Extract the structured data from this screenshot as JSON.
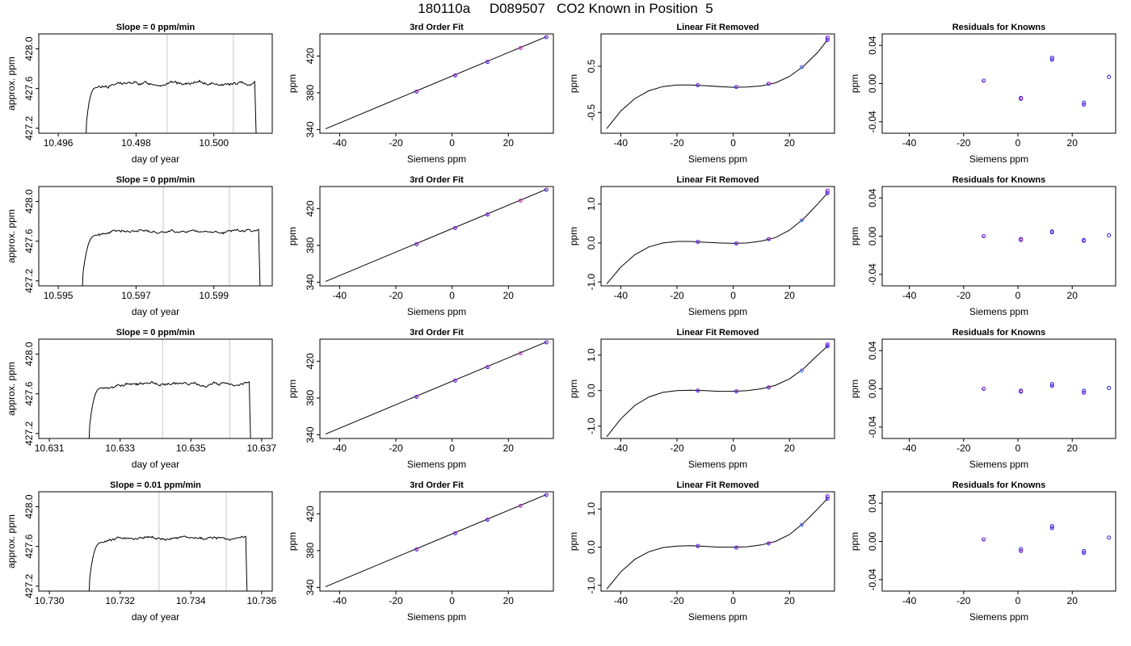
{
  "figure": {
    "title": "180110a     D089507   CO2 Known in Position  5"
  },
  "colors": {
    "axis": "#000000",
    "trace": "#000000",
    "marker_guides": "#c8c8c8",
    "points_primary": "#2222dd",
    "points_secondary": "#cc44cc",
    "points_highlight": "#33aaee"
  },
  "chart_data": [
    {
      "type": "line",
      "row": 1,
      "panel": "trace",
      "title": "Slope =  0  ppm/min",
      "xlabel": "day of year",
      "ylabel": "approx. ppm",
      "xlim": [
        10.4955,
        10.5015
      ],
      "ylim": [
        427.15,
        428.15
      ],
      "xticks": [
        10.496,
        10.498,
        10.5
      ],
      "xticklabels": [
        "10.496",
        "10.498",
        "10.500"
      ],
      "yticks": [
        427.2,
        427.6,
        428.0
      ],
      "yticklabels": [
        "427.2",
        "427.6",
        "428.0"
      ],
      "marker_lines": [
        10.4988,
        10.5005
      ],
      "trace": {
        "start": 10.4967,
        "rise_end": 10.497,
        "plateau": 427.65,
        "end": 10.5011,
        "noise": 0.012
      }
    },
    {
      "type": "line",
      "row": 1,
      "panel": "fit3",
      "title": "3rd Order Fit",
      "xlabel": "Siemens ppm",
      "ylabel": "ppm",
      "xlim": [
        -47,
        36
      ],
      "ylim": [
        336,
        444
      ],
      "xticks": [
        -40,
        -20,
        0,
        20
      ],
      "xticklabels": [
        "-40",
        "-20",
        "0",
        "20"
      ],
      "yticks": [
        340,
        380,
        420
      ],
      "yticklabels": [
        "340",
        "380",
        "420"
      ],
      "line": [
        [
          -45,
          340.8
        ],
        [
          33.5,
          441.0
        ]
      ],
      "points": [
        [
          -12.6,
          381.3
        ],
        [
          1.1,
          398.9
        ],
        [
          12.6,
          413.6
        ],
        [
          24.3,
          428.6
        ],
        [
          33.5,
          440.5
        ]
      ]
    },
    {
      "type": "line",
      "row": 1,
      "panel": "linear_removed",
      "title": "Linear Fit Removed",
      "xlabel": "Siemens ppm",
      "ylabel": "ppm",
      "xlim": [
        -47,
        36
      ],
      "ylim": [
        -0.95,
        1.2
      ],
      "xticks": [
        -40,
        -20,
        0,
        20
      ],
      "xticklabels": [
        "-40",
        "-20",
        "0",
        "20"
      ],
      "yticks": [
        -0.5,
        0.5
      ],
      "yticklabels": [
        "-0.5",
        "0.5"
      ],
      "curve": [
        [
          -45,
          -0.85
        ],
        [
          -40,
          -0.47
        ],
        [
          -35,
          -0.2
        ],
        [
          -30,
          -0.03
        ],
        [
          -25,
          0.06
        ],
        [
          -20,
          0.095
        ],
        [
          -15,
          0.095
        ],
        [
          -10,
          0.08
        ],
        [
          -5,
          0.06
        ],
        [
          0,
          0.045
        ],
        [
          5,
          0.05
        ],
        [
          10,
          0.075
        ],
        [
          15,
          0.14
        ],
        [
          20,
          0.28
        ],
        [
          25,
          0.5
        ],
        [
          30,
          0.8
        ],
        [
          33.5,
          1.07
        ]
      ],
      "points": [
        [
          -12.6,
          0.09
        ],
        [
          1.1,
          0.05
        ],
        [
          12.6,
          0.12
        ],
        [
          24.3,
          0.48
        ],
        [
          33.5,
          1.07
        ],
        [
          33.5,
          1.12
        ]
      ]
    },
    {
      "type": "scatter",
      "row": 1,
      "panel": "residuals",
      "title": "Residuals for Knowns",
      "xlabel": "Siemens ppm",
      "ylabel": "ppm",
      "xlim": [
        -50,
        36
      ],
      "ylim": [
        -0.052,
        0.052
      ],
      "xticks": [
        -40,
        -20,
        0,
        20
      ],
      "xticklabels": [
        "-40",
        "-20",
        "0",
        "20"
      ],
      "yticks": [
        -0.04,
        0.0,
        0.04
      ],
      "yticklabels": [
        "-0.04",
        "0.00",
        "0.04"
      ],
      "points": [
        [
          -12.6,
          0.003
        ],
        [
          1.1,
          -0.015
        ],
        [
          1.1,
          -0.016
        ],
        [
          12.6,
          0.027
        ],
        [
          12.6,
          0.025
        ],
        [
          24.3,
          -0.02
        ],
        [
          24.3,
          -0.022
        ],
        [
          33.5,
          0.007
        ]
      ]
    },
    {
      "type": "line",
      "row": 2,
      "panel": "trace",
      "title": "Slope =  0  ppm/min",
      "xlabel": "day of year",
      "ylabel": "approx. ppm",
      "xlim": [
        10.5945,
        10.6005
      ],
      "ylim": [
        427.15,
        428.15
      ],
      "xticks": [
        10.595,
        10.597,
        10.599
      ],
      "xticklabels": [
        "10.595",
        "10.597",
        "10.599"
      ],
      "yticks": [
        427.2,
        427.6,
        428.0
      ],
      "yticklabels": [
        "427.2",
        "427.6",
        "428.0"
      ],
      "marker_lines": [
        10.5977,
        10.5994
      ],
      "trace": {
        "start": 10.5956,
        "rise_end": 10.596,
        "plateau": 427.7,
        "end": 10.6002,
        "noise": 0.01
      }
    },
    {
      "type": "line",
      "row": 2,
      "panel": "fit3",
      "title": "3rd Order Fit",
      "xlabel": "Siemens ppm",
      "ylabel": "ppm",
      "xlim": [
        -47,
        36
      ],
      "ylim": [
        336,
        444
      ],
      "xticks": [
        -40,
        -20,
        0,
        20
      ],
      "xticklabels": [
        "-40",
        "-20",
        "0",
        "20"
      ],
      "yticks": [
        340,
        380,
        420
      ],
      "yticklabels": [
        "340",
        "380",
        "420"
      ],
      "line": [
        [
          -45,
          340.8
        ],
        [
          33.5,
          441.0
        ]
      ],
      "points": [
        [
          -12.6,
          381.3
        ],
        [
          1.1,
          398.9
        ],
        [
          12.6,
          413.6
        ],
        [
          24.3,
          428.6
        ],
        [
          33.5,
          440.5
        ]
      ]
    },
    {
      "type": "line",
      "row": 2,
      "panel": "linear_removed",
      "title": "Linear Fit Removed",
      "xlabel": "Siemens ppm",
      "ylabel": "ppm",
      "xlim": [
        -47,
        36
      ],
      "ylim": [
        -1.1,
        1.45
      ],
      "xticks": [
        -40,
        -20,
        0,
        20
      ],
      "xticklabels": [
        "-40",
        "-20",
        "0",
        "20"
      ],
      "yticks": [
        -1.0,
        0.0,
        1.0
      ],
      "yticklabels": [
        "-1.0",
        "0.0",
        "1.0"
      ],
      "curve": [
        [
          -45,
          -1.05
        ],
        [
          -40,
          -0.62
        ],
        [
          -35,
          -0.3
        ],
        [
          -30,
          -0.1
        ],
        [
          -25,
          0.0
        ],
        [
          -20,
          0.04
        ],
        [
          -15,
          0.04
        ],
        [
          -10,
          0.02
        ],
        [
          -5,
          0.0
        ],
        [
          0,
          -0.01
        ],
        [
          5,
          0.0
        ],
        [
          10,
          0.05
        ],
        [
          15,
          0.14
        ],
        [
          20,
          0.33
        ],
        [
          25,
          0.62
        ],
        [
          30,
          1.0
        ],
        [
          33.5,
          1.28
        ]
      ],
      "points": [
        [
          -12.6,
          0.03
        ],
        [
          1.1,
          -0.01
        ],
        [
          12.6,
          0.1
        ],
        [
          24.3,
          0.58
        ],
        [
          33.5,
          1.28
        ],
        [
          33.5,
          1.34
        ]
      ]
    },
    {
      "type": "scatter",
      "row": 2,
      "panel": "residuals",
      "title": "Residuals for Knowns",
      "xlabel": "Siemens ppm",
      "ylabel": "ppm",
      "xlim": [
        -50,
        36
      ],
      "ylim": [
        -0.052,
        0.052
      ],
      "xticks": [
        -40,
        -20,
        0,
        20
      ],
      "xticklabels": [
        "-40",
        "-20",
        "0",
        "20"
      ],
      "yticks": [
        -0.04,
        0.0,
        0.04
      ],
      "yticklabels": [
        "-0.04",
        "0.00",
        "0.04"
      ],
      "points": [
        [
          -12.6,
          0.0
        ],
        [
          1.1,
          -0.003
        ],
        [
          1.1,
          -0.004
        ],
        [
          12.6,
          0.005
        ],
        [
          12.6,
          0.004
        ],
        [
          24.3,
          -0.004
        ],
        [
          24.3,
          -0.005
        ],
        [
          33.5,
          0.001
        ]
      ]
    },
    {
      "type": "line",
      "row": 3,
      "panel": "trace",
      "title": "Slope =  0  ppm/min",
      "xlabel": "day of year",
      "ylabel": "approx. ppm",
      "xlim": [
        10.6307,
        10.6373
      ],
      "ylim": [
        427.15,
        428.15
      ],
      "xticks": [
        10.631,
        10.633,
        10.635,
        10.637
      ],
      "xticklabels": [
        "10.631",
        "10.633",
        "10.635",
        "10.637"
      ],
      "yticks": [
        427.2,
        427.6,
        428.0
      ],
      "yticklabels": [
        "427.2",
        "427.6",
        "428.0"
      ],
      "marker_lines": [
        10.6342,
        10.6361
      ],
      "trace": {
        "start": 10.6321,
        "rise_end": 10.6325,
        "plateau": 427.7,
        "end": 10.6367,
        "noise": 0.012
      }
    },
    {
      "type": "line",
      "row": 3,
      "panel": "fit3",
      "title": "3rd Order Fit",
      "xlabel": "Siemens ppm",
      "ylabel": "ppm",
      "xlim": [
        -47,
        36
      ],
      "ylim": [
        336,
        444
      ],
      "xticks": [
        -40,
        -20,
        0,
        20
      ],
      "xticklabels": [
        "-40",
        "-20",
        "0",
        "20"
      ],
      "yticks": [
        340,
        380,
        420
      ],
      "yticklabels": [
        "340",
        "380",
        "420"
      ],
      "line": [
        [
          -45,
          340.8
        ],
        [
          33.5,
          441.0
        ]
      ],
      "points": [
        [
          -12.6,
          381.3
        ],
        [
          1.1,
          398.9
        ],
        [
          12.6,
          413.6
        ],
        [
          24.3,
          428.6
        ],
        [
          33.5,
          440.5
        ]
      ]
    },
    {
      "type": "line",
      "row": 3,
      "panel": "linear_removed",
      "title": "Linear Fit Removed",
      "xlabel": "Siemens ppm",
      "ylabel": "ppm",
      "xlim": [
        -47,
        36
      ],
      "ylim": [
        -1.35,
        1.45
      ],
      "xticks": [
        -40,
        -20,
        0,
        20
      ],
      "xticklabels": [
        "-40",
        "-20",
        "0",
        "20"
      ],
      "yticks": [
        -1.0,
        0.0,
        1.0
      ],
      "yticklabels": [
        "-1.0",
        "0.0",
        "1.0"
      ],
      "curve": [
        [
          -45,
          -1.3
        ],
        [
          -40,
          -0.8
        ],
        [
          -35,
          -0.42
        ],
        [
          -30,
          -0.18
        ],
        [
          -25,
          -0.05
        ],
        [
          -20,
          0.0
        ],
        [
          -15,
          0.01
        ],
        [
          -10,
          0.0
        ],
        [
          -5,
          -0.02
        ],
        [
          0,
          -0.02
        ],
        [
          5,
          0.0
        ],
        [
          10,
          0.05
        ],
        [
          15,
          0.15
        ],
        [
          20,
          0.33
        ],
        [
          25,
          0.62
        ],
        [
          30,
          1.0
        ],
        [
          33.5,
          1.25
        ]
      ],
      "points": [
        [
          -12.6,
          0.0
        ],
        [
          1.1,
          -0.02
        ],
        [
          12.6,
          0.09
        ],
        [
          24.3,
          0.56
        ],
        [
          33.5,
          1.25
        ],
        [
          33.5,
          1.3
        ]
      ]
    },
    {
      "type": "scatter",
      "row": 3,
      "panel": "residuals",
      "title": "Residuals for Knowns",
      "xlabel": "Siemens ppm",
      "ylabel": "ppm",
      "xlim": [
        -50,
        36
      ],
      "ylim": [
        -0.052,
        0.052
      ],
      "xticks": [
        -40,
        -20,
        0,
        20
      ],
      "xticklabels": [
        "-40",
        "-20",
        "0",
        "20"
      ],
      "yticks": [
        -0.04,
        0.0,
        0.04
      ],
      "yticklabels": [
        "-0.04",
        "0.00",
        "0.04"
      ],
      "points": [
        [
          -12.6,
          0.0
        ],
        [
          1.1,
          -0.002
        ],
        [
          1.1,
          -0.003
        ],
        [
          12.6,
          0.005
        ],
        [
          12.6,
          0.003
        ],
        [
          24.3,
          -0.002
        ],
        [
          24.3,
          -0.004
        ],
        [
          33.5,
          0.001
        ]
      ]
    },
    {
      "type": "line",
      "row": 4,
      "panel": "trace",
      "title": "Slope =  0.01  ppm/min",
      "xlabel": "day of year",
      "ylabel": "approx. ppm",
      "xlim": [
        10.7297,
        10.7363
      ],
      "ylim": [
        427.15,
        428.15
      ],
      "xticks": [
        10.73,
        10.732,
        10.734,
        10.736
      ],
      "xticklabels": [
        "10.730",
        "10.732",
        "10.734",
        "10.736"
      ],
      "yticks": [
        427.2,
        427.6,
        428.0
      ],
      "yticklabels": [
        "427.2",
        "427.6",
        "428.0"
      ],
      "marker_lines": [
        10.7331,
        10.735
      ],
      "trace": {
        "start": 10.7311,
        "rise_end": 10.7315,
        "plateau": 427.68,
        "end": 10.7356,
        "noise": 0.01
      }
    },
    {
      "type": "line",
      "row": 4,
      "panel": "fit3",
      "title": "3rd Order Fit",
      "xlabel": "Siemens ppm",
      "ylabel": "ppm",
      "xlim": [
        -47,
        36
      ],
      "ylim": [
        336,
        444
      ],
      "xticks": [
        -40,
        -20,
        0,
        20
      ],
      "xticklabels": [
        "-40",
        "-20",
        "0",
        "20"
      ],
      "yticks": [
        340,
        380,
        420
      ],
      "yticklabels": [
        "340",
        "380",
        "420"
      ],
      "line": [
        [
          -45,
          340.8
        ],
        [
          33.5,
          441.0
        ]
      ],
      "points": [
        [
          -12.6,
          381.3
        ],
        [
          1.1,
          398.9
        ],
        [
          12.6,
          413.6
        ],
        [
          24.3,
          428.6
        ],
        [
          33.5,
          440.5
        ]
      ]
    },
    {
      "type": "line",
      "row": 4,
      "panel": "linear_removed",
      "title": "Linear Fit Removed",
      "xlabel": "Siemens ppm",
      "ylabel": "ppm",
      "xlim": [
        -47,
        36
      ],
      "ylim": [
        -1.15,
        1.45
      ],
      "xticks": [
        -40,
        -20,
        0,
        20
      ],
      "xticklabels": [
        "-40",
        "-20",
        "0",
        "20"
      ],
      "yticks": [
        -1.0,
        0.0,
        1.0
      ],
      "yticklabels": [
        "-1.0",
        "0.0",
        "1.0"
      ],
      "curve": [
        [
          -45,
          -1.1
        ],
        [
          -40,
          -0.65
        ],
        [
          -35,
          -0.32
        ],
        [
          -30,
          -0.12
        ],
        [
          -25,
          -0.01
        ],
        [
          -20,
          0.03
        ],
        [
          -15,
          0.04
        ],
        [
          -10,
          0.02
        ],
        [
          -5,
          0.0
        ],
        [
          0,
          0.0
        ],
        [
          5,
          0.01
        ],
        [
          10,
          0.06
        ],
        [
          15,
          0.15
        ],
        [
          20,
          0.33
        ],
        [
          25,
          0.63
        ],
        [
          30,
          1.0
        ],
        [
          33.5,
          1.27
        ]
      ],
      "points": [
        [
          -12.6,
          0.03
        ],
        [
          1.1,
          -0.01
        ],
        [
          12.6,
          0.1
        ],
        [
          24.3,
          0.58
        ],
        [
          33.5,
          1.27
        ],
        [
          33.5,
          1.33
        ]
      ]
    },
    {
      "type": "scatter",
      "row": 4,
      "panel": "residuals",
      "title": "Residuals for Knowns",
      "xlabel": "Siemens ppm",
      "ylabel": "ppm",
      "xlim": [
        -50,
        36
      ],
      "ylim": [
        -0.052,
        0.052
      ],
      "xticks": [
        -40,
        -20,
        0,
        20
      ],
      "xticklabels": [
        "-40",
        "-20",
        "0",
        "20"
      ],
      "yticks": [
        -0.04,
        0.0,
        0.04
      ],
      "yticklabels": [
        "-0.04",
        "0.00",
        "0.04"
      ],
      "points": [
        [
          -12.6,
          0.002
        ],
        [
          1.1,
          -0.008
        ],
        [
          1.1,
          -0.01
        ],
        [
          12.6,
          0.016
        ],
        [
          12.6,
          0.014
        ],
        [
          24.3,
          -0.01
        ],
        [
          24.3,
          -0.012
        ],
        [
          33.5,
          0.004
        ]
      ]
    }
  ]
}
